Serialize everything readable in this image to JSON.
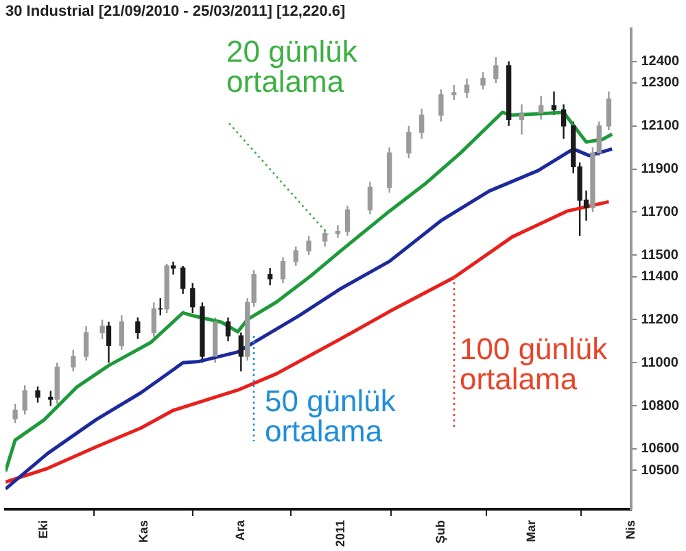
{
  "chart_data": {
    "type": "candlestick",
    "title": "30 Industrial [21/09/2010 - 25/03/2011] [12,220.6]",
    "colors": [
      "#9a9a9a",
      "#9a9a9a",
      "#1a1a1a",
      "#1a1a1a",
      "#9a9a9a",
      "#9a9a9a",
      "#9a9a9a",
      "#9a9a9a",
      "#1a1a1a",
      "#9a9a9a",
      "#1a1a1a",
      "#9a9a9a",
      "#1a1a1a",
      "#9a9a9a",
      "#1a1a1a",
      "#1a1a1a",
      "#1a1a1a",
      "#1a1a1a",
      "#9a9a9a",
      "#1a1a1a",
      "#1a1a1a",
      "#9a9a9a",
      "#9a9a9a",
      "#1a1a1a",
      "#9a9a9a",
      "#9a9a9a",
      "#9a9a9a",
      "#9a9a9a",
      "#9a9a9a",
      "#9a9a9a",
      "#9a9a9a",
      "#9a9a9a",
      "#9a9a9a",
      "#9a9a9a",
      "#9a9a9a",
      "#9a9a9a",
      "#9a9a9a",
      "#9a9a9a",
      "#9a9a9a",
      "#1a1a1a",
      "#9a9a9a",
      "#9a9a9a",
      "#1a1a1a",
      "#1a1a1a",
      "#1a1a1a",
      "#1a1a1a",
      "#1a1a1a",
      "#9a9a9a",
      "#9a9a9a",
      "#9a9a9a"
    ],
    "x": [
      "2010-09-22",
      "2010-09-25",
      "2010-09-29",
      "2010-10-03",
      "2010-10-05",
      "2010-10-10",
      "2010-10-14",
      "2010-10-19",
      "2010-10-21",
      "2010-10-25",
      "2010-10-30",
      "2010-11-04",
      "2010-11-06",
      "2010-11-08",
      "2010-11-10",
      "2010-11-13",
      "2010-11-16",
      "2010-11-19",
      "2010-11-23",
      "2010-11-27",
      "2010-12-01",
      "2010-12-03",
      "2010-12-05",
      "2010-12-10",
      "2010-12-14",
      "2010-12-18",
      "2010-12-22",
      "2010-12-27",
      "2010-12-31",
      "2011-01-03",
      "2011-01-10",
      "2011-01-16",
      "2011-01-22",
      "2011-01-26",
      "2011-02-01",
      "2011-02-05",
      "2011-02-09",
      "2011-02-14",
      "2011-02-18",
      "2011-02-22",
      "2011-02-26",
      "2011-03-04",
      "2011-03-08",
      "2011-03-11",
      "2011-03-14",
      "2011-03-16",
      "2011-03-18",
      "2011-03-20",
      "2011-03-22",
      "2011-03-25"
    ],
    "ohlc": [
      [
        10740,
        10810,
        10720,
        10780
      ],
      [
        10780,
        10895,
        10760,
        10870
      ],
      [
        10870,
        10890,
        10815,
        10840
      ],
      [
        10840,
        10870,
        10800,
        10830
      ],
      [
        10830,
        11000,
        10810,
        10980
      ],
      [
        10980,
        11060,
        10960,
        11030
      ],
      [
        11030,
        11170,
        11010,
        11140
      ],
      [
        11140,
        11200,
        11110,
        11170
      ],
      [
        11170,
        11190,
        11000,
        11080
      ],
      [
        11080,
        11220,
        11060,
        11190
      ],
      [
        11190,
        11210,
        11110,
        11140
      ],
      [
        11140,
        11280,
        11120,
        11250
      ],
      [
        11250,
        11300,
        11220,
        11250
      ],
      [
        11250,
        11460,
        11230,
        11450
      ],
      [
        11450,
        11470,
        11410,
        11440
      ],
      [
        11440,
        11450,
        11320,
        11345
      ],
      [
        11345,
        11370,
        11230,
        11260
      ],
      [
        11260,
        11280,
        11000,
        11030
      ],
      [
        11030,
        11210,
        11000,
        11190
      ],
      [
        11190,
        11210,
        11100,
        11125
      ],
      [
        11125,
        11140,
        10960,
        11030
      ],
      [
        11030,
        11300,
        11010,
        11280
      ],
      [
        11280,
        11430,
        11260,
        11410
      ],
      [
        11410,
        11440,
        11360,
        11390
      ],
      [
        11390,
        11490,
        11370,
        11470
      ],
      [
        11470,
        11540,
        11450,
        11520
      ],
      [
        11520,
        11590,
        11500,
        11565
      ],
      [
        11565,
        11620,
        11540,
        11600
      ],
      [
        11600,
        11640,
        11580,
        11610
      ],
      [
        11610,
        11730,
        11590,
        11710
      ],
      [
        11710,
        11840,
        11690,
        11815
      ],
      [
        11815,
        12000,
        11790,
        11975
      ],
      [
        11975,
        12100,
        11950,
        12070
      ],
      [
        12070,
        12180,
        12040,
        12150
      ],
      [
        12150,
        12270,
        12120,
        12245
      ],
      [
        12245,
        12290,
        12220,
        12255
      ],
      [
        12255,
        12320,
        12230,
        12290
      ],
      [
        12290,
        12350,
        12270,
        12320
      ],
      [
        12320,
        12420,
        12300,
        12380
      ],
      [
        12380,
        12400,
        12100,
        12130
      ],
      [
        12130,
        12200,
        12060,
        12160
      ],
      [
        12160,
        12240,
        12130,
        12195
      ],
      [
        12195,
        12260,
        12150,
        12175
      ],
      [
        12175,
        12200,
        12040,
        12100
      ],
      [
        12100,
        12120,
        11880,
        11910
      ],
      [
        11910,
        11930,
        11590,
        11755
      ],
      [
        11755,
        11800,
        11660,
        11720
      ],
      [
        11720,
        12000,
        11700,
        11975
      ],
      [
        11975,
        12120,
        11960,
        12100
      ],
      [
        12100,
        12260,
        12080,
        12225
      ]
    ],
    "series": [
      {
        "type": "line",
        "color": "#1e9a3a",
        "x": [
          "2010-09-19",
          "2010-09-22",
          "2010-10-01",
          "2010-10-11",
          "2010-10-21",
          "2010-11-03",
          "2010-11-13",
          "2010-11-16",
          "2010-11-25",
          "2010-11-30",
          "2010-12-03",
          "2010-12-12",
          "2010-12-23",
          "2011-01-01",
          "2011-01-16",
          "2011-01-27",
          "2011-02-07",
          "2011-02-20",
          "2011-02-23",
          "2011-03-11",
          "2011-03-18",
          "2011-03-23",
          "2011-03-26"
        ],
        "values": [
          10496,
          10641,
          10735,
          10886,
          10987,
          11094,
          11232,
          11219,
          11188,
          11144,
          11201,
          11282,
          11408,
          11521,
          11704,
          11830,
          11974,
          12163,
          12150,
          12163,
          12025,
          12037,
          12062
        ]
      },
      {
        "type": "line",
        "color": "#1c2a9c",
        "x": [
          "2010-09-19",
          "2010-10-02",
          "2010-10-17",
          "2010-10-31",
          "2010-11-13",
          "2010-11-18",
          "2010-11-30",
          "2010-12-07",
          "2010-12-19",
          "2011-01-01",
          "2011-01-16",
          "2011-02-01",
          "2011-02-16",
          "2011-03-03",
          "2011-03-14",
          "2011-03-19",
          "2011-03-26"
        ],
        "values": [
          10414,
          10578,
          10735,
          10861,
          11000,
          11006,
          11050,
          11112,
          11219,
          11345,
          11471,
          11660,
          11798,
          11892,
          11993,
          11962,
          11993
        ]
      },
      {
        "type": "line",
        "color": "#e8201c",
        "x": [
          "2010-09-19",
          "2010-10-02",
          "2010-10-17",
          "2010-10-31",
          "2010-11-10",
          "2010-11-30",
          "2010-12-12",
          "2011-01-01",
          "2011-01-16",
          "2011-02-05",
          "2011-02-23",
          "2011-03-12",
          "2011-03-25"
        ],
        "values": [
          10446,
          10509,
          10609,
          10697,
          10779,
          10873,
          10949,
          11112,
          11238,
          11396,
          11584,
          11704,
          11748
        ]
      }
    ],
    "xlim": [
      "2010-09-19",
      "2011-04-01"
    ],
    "xticks": [
      {
        "value": "2010-10-01",
        "label": "Eki"
      },
      {
        "value": "2010-11-01",
        "label": "Kas"
      },
      {
        "value": "2010-12-01",
        "label": "Ara"
      },
      {
        "value": "2011-01-01",
        "label": "2011"
      },
      {
        "value": "2011-02-01",
        "label": "Şub"
      },
      {
        "value": "2011-03-01",
        "label": "Mar"
      },
      {
        "value": "2011-04-01",
        "label": "Nis"
      }
    ],
    "ylim": [
      10320,
      12550
    ],
    "yticks": [
      10500,
      10600,
      10800,
      11000,
      11200,
      11400,
      11500,
      11700,
      11900,
      12100,
      12300,
      12400
    ],
    "annotations": [
      {
        "text": "20 günlük ortalama",
        "x": "2010-12-28",
        "y": 11597
      },
      {
        "text": "50 günlük ortalama",
        "x": "2010-12-05",
        "y": 11125
      },
      {
        "text": "100 günlük ortalama",
        "x": "2011-02-05",
        "y": 11396
      }
    ]
  }
}
